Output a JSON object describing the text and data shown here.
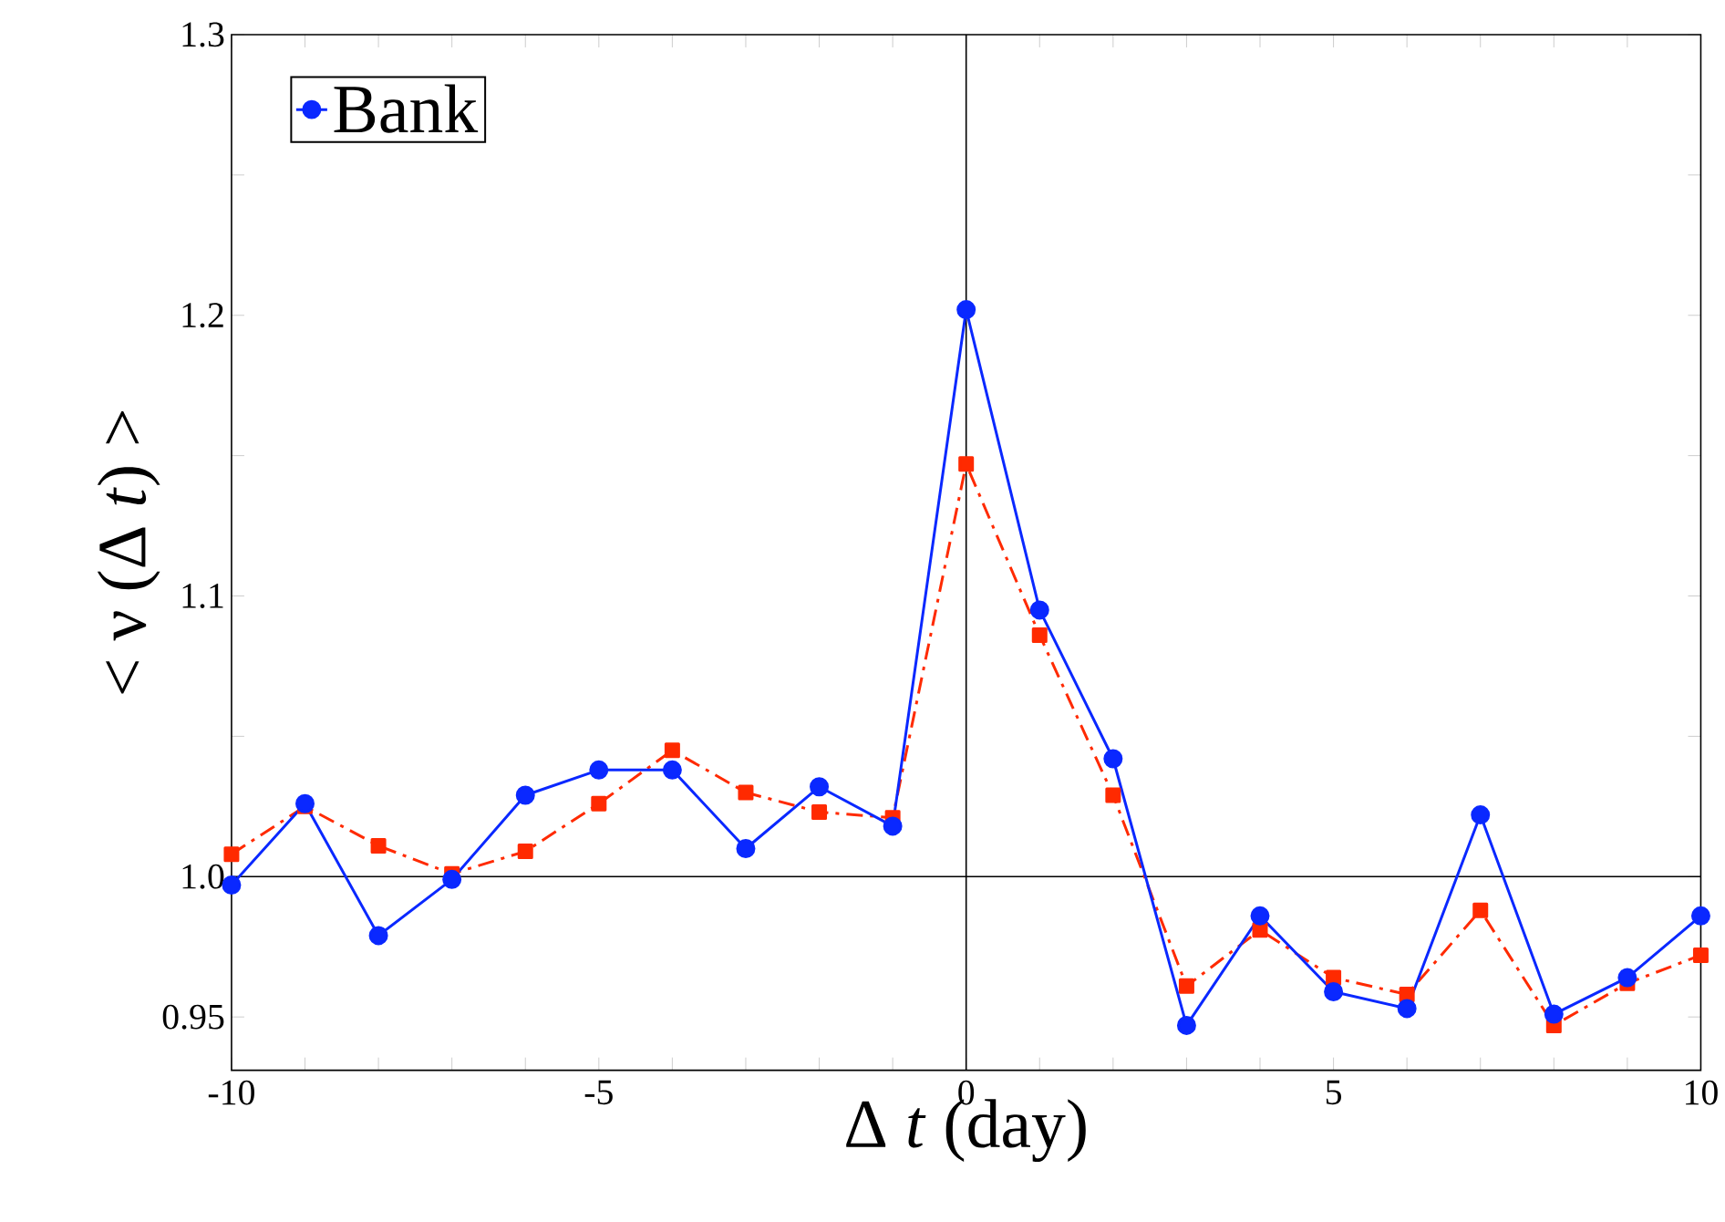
{
  "chart_data": {
    "type": "line",
    "xlabel": "Δ *t*  (day)",
    "ylabel": "< ν (Δ *t*) >",
    "x": [
      -10,
      -9,
      -8,
      -7,
      -6,
      -5,
      -4,
      -3,
      -2,
      -1,
      0,
      1,
      2,
      3,
      4,
      5,
      6,
      7,
      8,
      9,
      10
    ],
    "series": [
      {
        "name": "Bank",
        "color": "#0a28ff",
        "marker": "circle",
        "line_style": "solid",
        "values": [
          0.997,
          1.026,
          0.979,
          0.999,
          1.029,
          1.038,
          1.038,
          1.01,
          1.032,
          1.018,
          1.202,
          1.095,
          1.042,
          0.947,
          0.986,
          0.959,
          0.953,
          1.022,
          0.951,
          0.964,
          0.986
        ]
      },
      {
        "color": "#ff2a00",
        "marker": "square",
        "line_style": "dashed",
        "values": [
          1.008,
          1.025,
          1.011,
          1.001,
          1.009,
          1.026,
          1.045,
          1.03,
          1.023,
          1.021,
          1.147,
          1.086,
          1.029,
          0.961,
          0.981,
          0.964,
          0.958,
          0.988,
          0.947,
          0.962,
          0.972
        ]
      }
    ],
    "xlim": [
      -10,
      10
    ],
    "ylim": [
      0.931,
      1.3
    ],
    "xticks": [
      -10,
      {
        "value": -9,
        "label": null
      },
      {
        "value": -8,
        "label": null
      },
      {
        "value": -7,
        "label": null
      },
      {
        "value": -6,
        "label": null
      },
      -5,
      {
        "value": -4,
        "label": null
      },
      {
        "value": -3,
        "label": null
      },
      {
        "value": -2,
        "label": null
      },
      {
        "value": -1,
        "label": null
      },
      0,
      {
        "value": 1,
        "label": null
      },
      {
        "value": 2,
        "label": null
      },
      {
        "value": 3,
        "label": null
      },
      {
        "value": 4,
        "label": null
      },
      5,
      {
        "value": 6,
        "label": null
      },
      {
        "value": 7,
        "label": null
      },
      {
        "value": 8,
        "label": null
      },
      {
        "value": 9,
        "label": null
      },
      10
    ],
    "yticks": [
      0.95,
      {
        "value": 1.0,
        "label": "1.0"
      },
      {
        "value": 1.05,
        "label": null
      },
      {
        "value": 1.1,
        "label": "1.1"
      },
      {
        "value": 1.15,
        "label": null
      },
      1.2,
      {
        "value": 1.25,
        "label": null
      },
      1.3
    ],
    "ref_lines": [
      {
        "axis": "x",
        "value": 0,
        "color": "#000000"
      },
      {
        "axis": "y",
        "value": 1.0,
        "color": "#000000"
      }
    ],
    "grid": false,
    "legend": "top left"
  }
}
